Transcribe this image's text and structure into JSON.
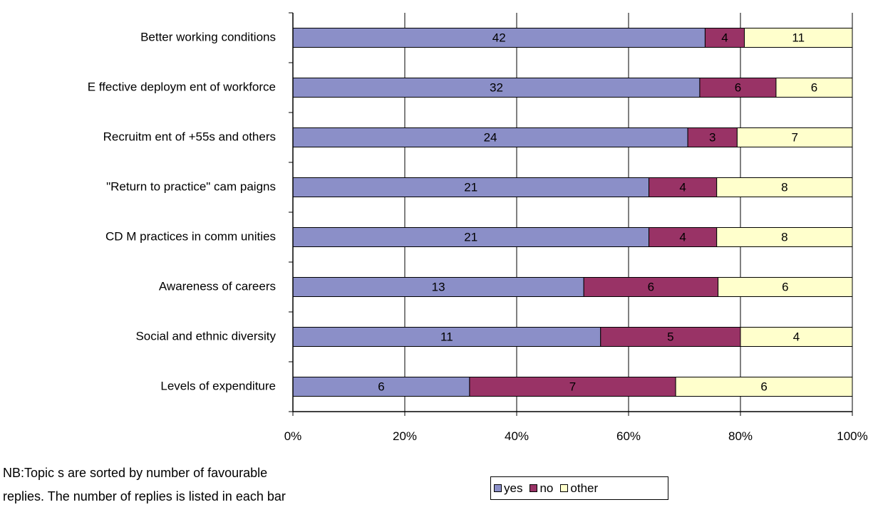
{
  "chart_data": {
    "type": "bar",
    "orientation": "horizontal",
    "stacking": "percent",
    "categories": [
      "Better working conditions",
      "E ffective deploym ent of workforce",
      "Recruitm ent of +55s and others",
      "\"Return to  practice\" cam paigns",
      "CD M practices in comm unities",
      "Awareness of careers",
      "Social and ethnic diversity",
      "Levels of expenditure"
    ],
    "series": [
      {
        "name": "yes",
        "color": "#8B8FC8",
        "values": [
          42,
          32,
          24,
          21,
          21,
          13,
          11,
          6
        ]
      },
      {
        "name": "no",
        "color": "#993366",
        "values": [
          4,
          6,
          3,
          4,
          4,
          6,
          5,
          7
        ]
      },
      {
        "name": "other",
        "color": "#FFFFCC",
        "values": [
          11,
          6,
          7,
          8,
          8,
          6,
          4,
          6
        ]
      }
    ],
    "xlim": [
      0,
      100
    ],
    "ticks": [
      "0%",
      "20%",
      "40%",
      "60%",
      "80%",
      "100%"
    ],
    "grid": true,
    "legend_position": "bottom"
  },
  "note": "NB:Topic s are sorted by  number of favourable\nreplies. The number of replies is listed in each bar"
}
